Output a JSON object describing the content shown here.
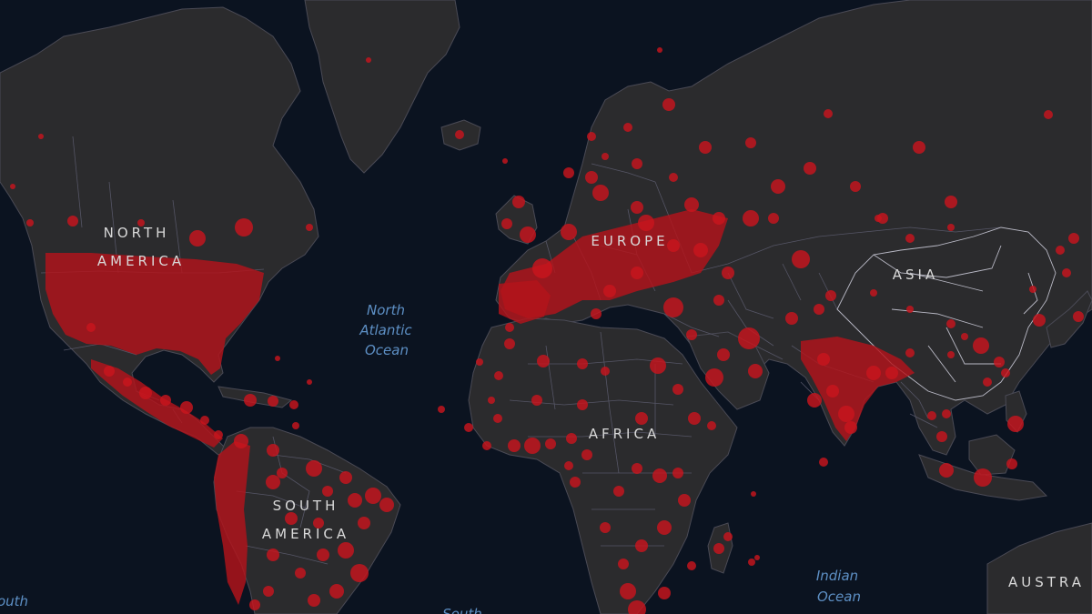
{
  "map": {
    "colors": {
      "ocean": "#0b1320",
      "land": "#2b2b2d",
      "case_marker": "#c8151d",
      "continent_label": "#d9d9d9",
      "ocean_label": "#5d8fc4"
    },
    "marker_type": "red-circle-case-marker",
    "labels": {
      "north_america": [
        "NORTH",
        "AMERICA"
      ],
      "europe": "EUROPE",
      "asia": "ASIA",
      "africa": "AFRICA",
      "south_america": [
        "SOUTH",
        "AMERICA"
      ],
      "australia": "AUSTRA",
      "north_atlantic": [
        "North",
        "Atlantic",
        "Ocean"
      ],
      "indian_ocean": [
        "Indian",
        "Ocean"
      ],
      "south_pacific": "outh",
      "south_atlantic": "South"
    }
  }
}
